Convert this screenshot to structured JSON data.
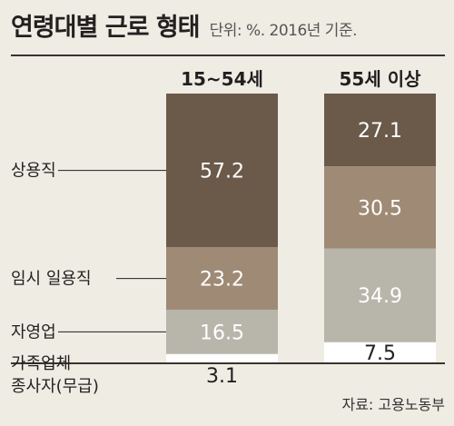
{
  "header": {
    "title": "연령대별 근로 형태",
    "subtitle": "단위: %. 2016년 기준."
  },
  "source": "자료: 고용노동부",
  "colors": {
    "background": "#efece4",
    "regular": "#6b5a4a",
    "temporary": "#9f8a75",
    "self_employed": "#b8b5ab",
    "family_worker": "#ffffff"
  },
  "chart_data": {
    "type": "bar",
    "stacked": true,
    "categories": [
      "15~54세",
      "55세 이상"
    ],
    "series": [
      {
        "name": "상용직",
        "values": [
          57.2,
          27.1
        ]
      },
      {
        "name": "임시 일용직",
        "values": [
          23.2,
          30.5
        ]
      },
      {
        "name": "자영업",
        "values": [
          16.5,
          34.9
        ]
      },
      {
        "name": "가족업체 종사자(무급)",
        "values": [
          3.1,
          7.5
        ]
      }
    ],
    "value_labels": [
      [
        "57.2",
        "23.2",
        "16.5",
        "3.1"
      ],
      [
        "27.1",
        "30.5",
        "34.9",
        "7.5"
      ]
    ],
    "legend_lines": [
      [
        "상용직"
      ],
      [
        "임시  일용직"
      ],
      [
        "자영업"
      ],
      [
        "가족업체",
        "종사자(무급)"
      ]
    ],
    "ylim": [
      0,
      100
    ],
    "legend_position": "left"
  }
}
